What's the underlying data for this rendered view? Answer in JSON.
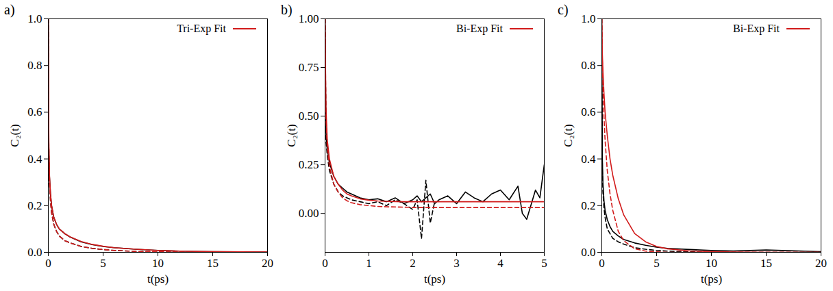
{
  "chart_data": [
    {
      "type": "line",
      "title": "a)",
      "x_label": "t(ps)",
      "y_label": "C₂(t)",
      "xlim": [
        0,
        20
      ],
      "ylim": [
        0,
        1
      ],
      "xticks": [
        0,
        5,
        10,
        15,
        20
      ],
      "yticks": [
        {
          "value": 0,
          "label": "0.0"
        },
        {
          "value": 0.2,
          "label": "0.2"
        },
        {
          "value": 0.4,
          "label": "0.4"
        },
        {
          "value": 0.6,
          "label": "0.6"
        },
        {
          "value": 0.8,
          "label": "0.8"
        },
        {
          "value": 1,
          "label": "1.0"
        }
      ],
      "grid": false,
      "legend": "upper right",
      "x": [
        0,
        0.05,
        0.1,
        0.2,
        0.3,
        0.5,
        0.75,
        1,
        1.5,
        2,
        3,
        4,
        5,
        6,
        8,
        10,
        12,
        15,
        20
      ],
      "series": [
        {
          "color": "#000000",
          "line_style": "solid",
          "values": [
            1.0,
            0.45,
            0.33,
            0.25,
            0.2,
            0.15,
            0.12,
            0.1,
            0.08,
            0.065,
            0.045,
            0.033,
            0.025,
            0.02,
            0.013,
            0.008,
            0.005,
            0.003,
            0.001
          ]
        },
        {
          "color": "#000000",
          "line_style": "dashed",
          "values": [
            1.0,
            0.4,
            0.3,
            0.22,
            0.17,
            0.12,
            0.09,
            0.07,
            0.05,
            0.04,
            0.025,
            0.017,
            0.012,
            0.008,
            0.004,
            0.002,
            0.001,
            0.0,
            0.0
          ]
        },
        {
          "name": "Tri-Exp Fit",
          "color": "#d11a1a",
          "line_style": "solid",
          "values": [
            1.0,
            0.47,
            0.34,
            0.25,
            0.2,
            0.15,
            0.12,
            0.1,
            0.08,
            0.066,
            0.046,
            0.034,
            0.026,
            0.02,
            0.013,
            0.008,
            0.005,
            0.003,
            0.001
          ]
        },
        {
          "color": "#d11a1a",
          "line_style": "dashed",
          "values": [
            1.0,
            0.42,
            0.31,
            0.22,
            0.17,
            0.12,
            0.09,
            0.07,
            0.05,
            0.04,
            0.025,
            0.017,
            0.012,
            0.008,
            0.004,
            0.002,
            0.001,
            0.0,
            0.0
          ]
        }
      ]
    },
    {
      "type": "line",
      "title": "b)",
      "x_label": "t(ps)",
      "y_label": "C₂(t)",
      "xlim": [
        0,
        5
      ],
      "ylim": [
        -0.2,
        1
      ],
      "xticks": [
        0,
        1,
        2,
        3,
        4,
        5
      ],
      "yticks": [
        {
          "value": 0,
          "label": "0.00"
        },
        {
          "value": 0.25,
          "label": "0.25"
        },
        {
          "value": 0.5,
          "label": "0.50"
        },
        {
          "value": 0.75,
          "label": "0.75"
        },
        {
          "value": 1,
          "label": "1.00"
        }
      ],
      "grid": false,
      "legend": "upper right",
      "x": [
        0,
        0.02,
        0.05,
        0.1,
        0.2,
        0.3,
        0.4,
        0.5,
        0.6,
        0.8,
        1.0,
        1.2,
        1.4,
        1.6,
        1.8,
        2.0,
        2.1,
        2.2,
        2.3,
        2.4,
        2.5,
        2.6,
        2.8,
        3.0,
        3.2,
        3.4,
        3.6,
        3.8,
        4.0,
        4.2,
        4.4,
        4.5,
        4.6,
        4.8,
        4.9,
        5.0
      ],
      "series": [
        {
          "color": "#000000",
          "line_style": "solid",
          "values": [
            1.0,
            0.42,
            0.33,
            0.26,
            0.19,
            0.15,
            0.13,
            0.11,
            0.1,
            0.08,
            0.07,
            0.075,
            0.06,
            0.08,
            0.05,
            0.07,
            0.09,
            0.06,
            0.08,
            0.1,
            0.05,
            0.07,
            0.09,
            0.05,
            0.11,
            0.08,
            0.06,
            0.1,
            0.12,
            0.07,
            0.14,
            0.0,
            -0.03,
            0.12,
            0.08,
            0.25
          ]
        },
        {
          "color": "#000000",
          "line_style": "dashed",
          "values": [
            1.0,
            0.38,
            0.3,
            0.22,
            0.15,
            0.11,
            0.09,
            0.08,
            0.07,
            0.06,
            0.05,
            0.06,
            0.04,
            0.07,
            0.05,
            0.02,
            0.07,
            -0.13,
            0.17,
            -0.05,
            0.06,
            null,
            null,
            null,
            null,
            null,
            null,
            null,
            null,
            null,
            null,
            null,
            null,
            null,
            null,
            null
          ]
        },
        {
          "name": "Bi-Exp Fit",
          "color": "#d11a1a",
          "line_style": "solid",
          "values": [
            1.0,
            0.55,
            0.38,
            0.28,
            0.19,
            0.15,
            0.12,
            0.1,
            0.09,
            0.075,
            0.068,
            0.064,
            0.062,
            0.061,
            0.06,
            0.06,
            0.06,
            0.06,
            0.06,
            0.06,
            0.06,
            0.06,
            0.06,
            0.06,
            0.06,
            0.06,
            0.06,
            0.06,
            0.06,
            0.06,
            0.06,
            0.06,
            0.06,
            0.06,
            0.06,
            0.06
          ]
        },
        {
          "color": "#d11a1a",
          "line_style": "dashed",
          "values": [
            1.0,
            0.5,
            0.34,
            0.24,
            0.15,
            0.11,
            0.08,
            0.065,
            0.055,
            0.045,
            0.04,
            0.036,
            0.034,
            0.033,
            0.032,
            0.031,
            0.03,
            0.03,
            0.03,
            0.03,
            0.03,
            0.03,
            0.03,
            0.03,
            0.03,
            0.03,
            0.03,
            0.03,
            0.03,
            0.03,
            0.03,
            0.03,
            0.03,
            0.03,
            0.03,
            0.03
          ]
        }
      ]
    },
    {
      "type": "line",
      "title": "c)",
      "x_label": "t(ps)",
      "y_label": "C₂(t)",
      "xlim": [
        0,
        20
      ],
      "ylim": [
        0,
        1
      ],
      "xticks": [
        0,
        5,
        10,
        15,
        20
      ],
      "yticks": [
        {
          "value": 0,
          "label": "0.0"
        },
        {
          "value": 0.2,
          "label": "0.2"
        },
        {
          "value": 0.4,
          "label": "0.4"
        },
        {
          "value": 0.6,
          "label": "0.6"
        },
        {
          "value": 0.8,
          "label": "0.8"
        },
        {
          "value": 1,
          "label": "1.0"
        }
      ],
      "grid": false,
      "legend": "upper right",
      "x": [
        0,
        0.05,
        0.1,
        0.2,
        0.3,
        0.5,
        0.75,
        1,
        1.5,
        2,
        3,
        4,
        5,
        6,
        8,
        10,
        12,
        15,
        20
      ],
      "series": [
        {
          "color": "#000000",
          "line_style": "solid",
          "values": [
            1.0,
            0.4,
            0.3,
            0.22,
            0.18,
            0.14,
            0.11,
            0.09,
            0.07,
            0.055,
            0.04,
            0.03,
            0.022,
            0.017,
            0.012,
            0.008,
            0.006,
            0.01,
            0.003
          ]
        },
        {
          "color": "#000000",
          "line_style": "dashed",
          "values": [
            1.0,
            0.35,
            0.26,
            0.19,
            0.15,
            0.1,
            0.08,
            0.06,
            0.045,
            0.035,
            0.02,
            0.013,
            0.008,
            0.005,
            0.002,
            0.001,
            0.0,
            0.0,
            0.0
          ]
        },
        {
          "name": "Bi-Exp Fit",
          "color": "#d11a1a",
          "line_style": "solid",
          "values": [
            1.0,
            0.85,
            0.78,
            0.68,
            0.6,
            0.5,
            0.4,
            0.33,
            0.23,
            0.16,
            0.08,
            0.045,
            0.025,
            0.015,
            0.006,
            0.003,
            0.001,
            0.0,
            0.0
          ]
        },
        {
          "color": "#d11a1a",
          "line_style": "dashed",
          "values": [
            1.0,
            0.82,
            0.72,
            0.58,
            0.48,
            0.35,
            0.25,
            0.18,
            0.09,
            0.05,
            0.015,
            0.005,
            0.002,
            0.0,
            0.0,
            0.0,
            0.0,
            0.0,
            0.0
          ]
        }
      ]
    }
  ]
}
